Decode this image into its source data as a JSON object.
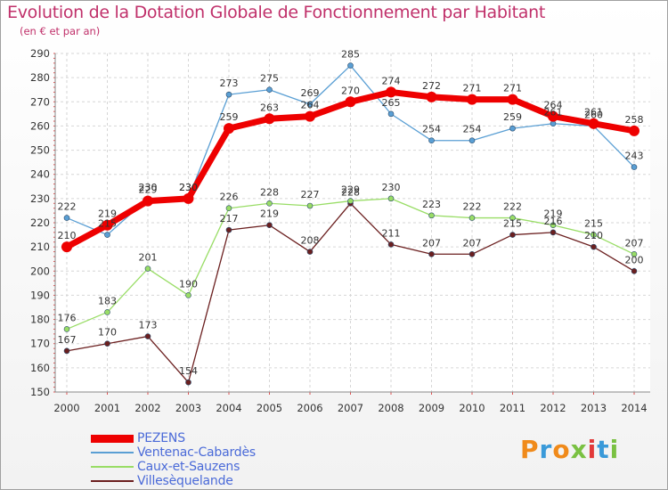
{
  "title": "Evolution de la Dotation Globale de Fonctionnement par Habitant",
  "subtitle": "(en € et par an)",
  "brand": {
    "text": "Proxiti",
    "colors": [
      "#f08a1a",
      "#3a9ad9",
      "#f08a1a",
      "#7ac142",
      "#e23a3a",
      "#3a9ad9",
      "#7ac142"
    ]
  },
  "chart_data": {
    "type": "line",
    "title": "Evolution de la Dotation Globale de Fonctionnement par Habitant",
    "ylabel": "en € et par an",
    "xlabel": "",
    "ylim": [
      150,
      290
    ],
    "yticks": [
      150,
      160,
      170,
      180,
      190,
      200,
      210,
      220,
      230,
      240,
      250,
      260,
      270,
      280,
      290
    ],
    "categories": [
      "2000",
      "2001",
      "2002",
      "2003",
      "2004",
      "2005",
      "2006",
      "2007",
      "2008",
      "2009",
      "2010",
      "2011",
      "2012",
      "2013",
      "2014"
    ],
    "legend_position": "bottom-left",
    "series": [
      {
        "name": "PEZENS",
        "color": "#ee0000",
        "values": [
          210,
          219,
          229,
          230,
          259,
          263,
          264,
          270,
          274,
          272,
          271,
          271,
          264,
          261,
          258
        ]
      },
      {
        "name": "Ventenac-Cabardès",
        "color": "#5a9fd4",
        "values": [
          222,
          215,
          230,
          230,
          273,
          275,
          269,
          285,
          265,
          254,
          254,
          259,
          261,
          260,
          243
        ]
      },
      {
        "name": "Caux-et-Sauzens",
        "color": "#99dd66",
        "values": [
          176,
          183,
          201,
          190,
          226,
          228,
          227,
          229,
          230,
          223,
          222,
          222,
          219,
          215,
          207
        ]
      },
      {
        "name": "Villesèquelande",
        "color": "#6b1f1f",
        "values": [
          167,
          170,
          173,
          154,
          217,
          219,
          208,
          228,
          211,
          207,
          207,
          215,
          216,
          210,
          200
        ]
      }
    ]
  }
}
